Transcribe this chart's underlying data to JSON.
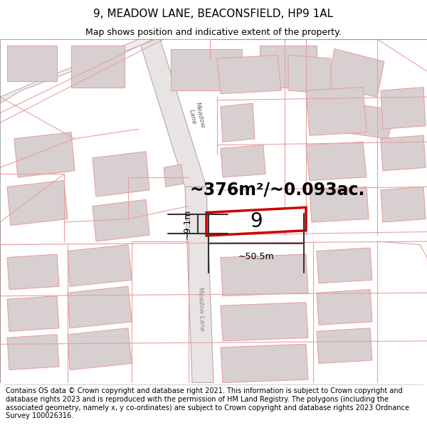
{
  "title": "9, MEADOW LANE, BEACONSFIELD, HP9 1AL",
  "subtitle": "Map shows position and indicative extent of the property.",
  "footer": "Contains OS data © Crown copyright and database right 2021. This information is subject to Crown copyright and database rights 2023 and is reproduced with the permission of HM Land Registry. The polygons (including the associated geometry, namely x, y co-ordinates) are subject to Crown copyright and database rights 2023 Ordnance Survey 100026316.",
  "area_text": "~376m²/~0.093ac.",
  "width_label": "~50.5m",
  "height_label": "~9.1m",
  "plot_number": "9",
  "highlight_color": "#cc0000",
  "road_line_color": "#e8a0a0",
  "building_fill": "#d8d0d0",
  "road_fill": "#e8e0e0",
  "map_bg": "#ffffff",
  "title_fontsize": 11,
  "subtitle_fontsize": 9,
  "footer_fontsize": 7.0
}
